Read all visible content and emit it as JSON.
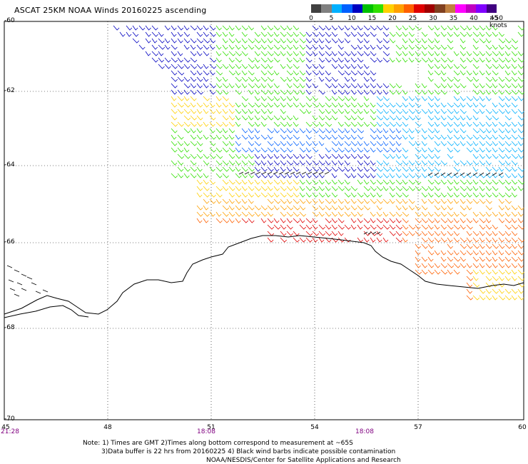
{
  "title": "ASCAT 25KM NOAA Winds 20160225 ascending",
  "legend": {
    "labels": [
      "0",
      "5",
      "10",
      "15",
      "20",
      "25",
      "30",
      "35",
      "40",
      "45",
      ">50 knots"
    ],
    "colors": [
      "#404040",
      "#808080",
      "#00b0ff",
      "#0060ff",
      "#0000c0",
      "#00c000",
      "#30e000",
      "#ffd000",
      "#ffa000",
      "#ff6000",
      "#e00000",
      "#a00000",
      "#804020",
      "#c08040",
      "#ff00ff",
      "#c000c0",
      "#8000ff",
      "#400080"
    ]
  },
  "axes": {
    "lat_labels": [
      "-60",
      "-62",
      "-64",
      "-66",
      "-68",
      "-70"
    ],
    "lon_labels": [
      "45",
      "48",
      "51",
      "54",
      "57",
      "60"
    ],
    "time_labels": [
      "21:28",
      "18:08",
      "18:08"
    ]
  },
  "notes": {
    "line1": "Note: 1) Times are GMT 2)Times along bottom correspond to measurement at ~65S",
    "line2": "3)Data buffer is 22 hrs from 20160225 4) Black wind barbs indicate possible contamination",
    "line3": "NOAA/NESDIS/Center for Satellite Applications and Research"
  }
}
